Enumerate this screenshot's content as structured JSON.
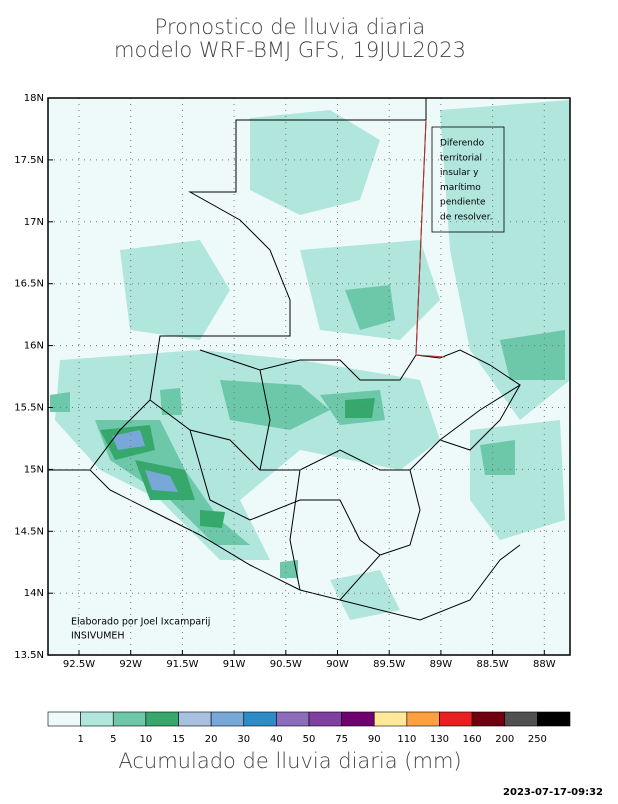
{
  "title": [
    "Pronostico de lluvia diaria",
    "modelo WRF-BMJ GFS,  19JUL2023"
  ],
  "map": {
    "lat_labels": [
      "18N",
      "17.5N",
      "17N",
      "16.5N",
      "16N",
      "15.5N",
      "15N",
      "14.5N",
      "14N",
      "13.5N"
    ],
    "lon_labels": [
      "92.5W",
      "92W",
      "91.5W",
      "91W",
      "90.5W",
      "90W",
      "89.5W",
      "89W",
      "88.5W",
      "88W"
    ],
    "annotation": [
      "Diferendo",
      "territorial",
      "insular y",
      "marítimo",
      "pendiente",
      "de resolver."
    ],
    "credit": [
      "Elaborado  por Joel Ixcamparij",
      "INSIVUMEH"
    ]
  },
  "legend": {
    "colors": [
      "#eefafa",
      "#b0e6dc",
      "#6cc8a8",
      "#36a86c",
      "#a8c0e0",
      "#78a8d8",
      "#2c8cc8",
      "#8c6cbc",
      "#8040a0",
      "#700070",
      "#ffe898",
      "#ffa040",
      "#e82020",
      "#700010",
      "#505050",
      "#000000"
    ],
    "labels": [
      1,
      5,
      10,
      15,
      20,
      30,
      40,
      50,
      75,
      90,
      110,
      130,
      160,
      200,
      250
    ],
    "title": "Acumulado de lluvia diaria (mm)"
  },
  "timestamp": "2023-07-17-09:32"
}
